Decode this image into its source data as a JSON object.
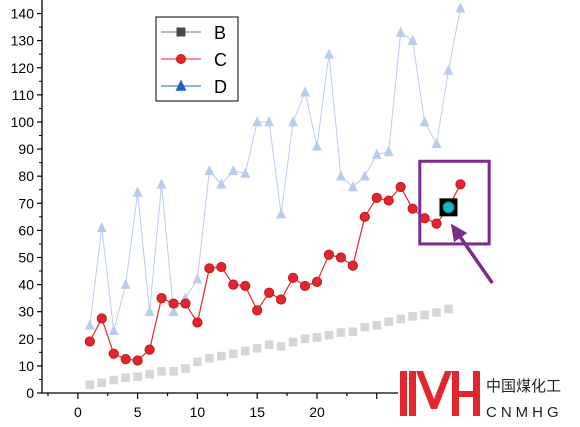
{
  "chart_data": {
    "type": "line",
    "title": "",
    "xlabel": "",
    "ylabel": "",
    "xlim": [
      -3,
      42
    ],
    "ylim": [
      0,
      145
    ],
    "x_ticks": [
      0,
      5,
      10,
      15,
      20
    ],
    "y_ticks": [
      0,
      10,
      20,
      30,
      40,
      50,
      60,
      70,
      80,
      90,
      100,
      110,
      120,
      130,
      140
    ],
    "grid": false,
    "legend_position": "top-left",
    "series": [
      {
        "name": "B",
        "marker": "square",
        "color": "#d6d6d6",
        "legend_color": "#4a4a4a",
        "x": [
          1,
          2,
          3,
          4,
          5,
          6,
          7,
          8,
          9,
          10,
          11,
          12,
          13,
          14,
          15,
          16,
          17,
          18,
          19,
          20,
          21,
          22,
          23,
          24,
          25,
          26,
          27,
          28,
          29,
          30,
          31
        ],
        "values": [
          3,
          3.8,
          4.8,
          5.6,
          6,
          7,
          8,
          8,
          9,
          11.5,
          12.8,
          13.6,
          14.5,
          15.5,
          16.5,
          17.8,
          17.2,
          18.8,
          20,
          20.5,
          21.3,
          22.3,
          22.6,
          24.3,
          25,
          26.3,
          27.3,
          28.3,
          28.8,
          29.7,
          31
        ]
      },
      {
        "name": "C",
        "marker": "circle",
        "color": "#e3262d",
        "legend_color": "#e3262d",
        "x": [
          1,
          2,
          3,
          4,
          5,
          6,
          7,
          8,
          9,
          10,
          11,
          12,
          13,
          14,
          15,
          16,
          17,
          18,
          19,
          20,
          21,
          22,
          23,
          24,
          25,
          26,
          27,
          28,
          29,
          30,
          31,
          32
        ],
        "values": [
          19,
          27.5,
          14.5,
          12.5,
          12,
          16,
          35,
          33,
          33,
          26,
          46,
          46.5,
          40,
          39.5,
          30.5,
          37,
          34.5,
          42.5,
          39.5,
          41,
          51,
          50,
          47,
          65,
          72,
          71,
          76,
          68,
          64.5,
          62.5,
          68.5,
          77
        ]
      },
      {
        "name": "D",
        "marker": "triangle",
        "color": "#b9cdeb",
        "legend_color": "#1f63c4",
        "x": [
          1,
          2,
          3,
          4,
          5,
          6,
          7,
          8,
          9,
          10,
          11,
          12,
          13,
          14,
          15,
          16,
          17,
          18,
          19,
          20,
          21,
          22,
          23,
          24,
          25,
          26,
          27,
          28,
          29,
          30,
          31,
          32
        ],
        "values": [
          25,
          61,
          23,
          40,
          74,
          30,
          77,
          30,
          35,
          42,
          82,
          77,
          82,
          81,
          100,
          100,
          66,
          100,
          111,
          91,
          125,
          80,
          76,
          80,
          88,
          89,
          133,
          130,
          100,
          92,
          119,
          142
        ]
      }
    ],
    "annotation": {
      "highlight_color": "#7b2a8e",
      "focus_point": {
        "series": "C",
        "x": 31,
        "y": 68.5
      },
      "box_x": [
        28.6,
        34.4
      ],
      "box_y": [
        55,
        85.5
      ],
      "arrow_from": {
        "x": 34.6,
        "y": 41
      },
      "arrow_to": {
        "x": 31.2,
        "y": 62.5
      },
      "focus_fill": "#17b7c6"
    }
  },
  "watermark": {
    "logo_letters": "NMH",
    "logo_color": "#e3262d",
    "chinese": "中国煤化工",
    "english": "CNMHG"
  }
}
